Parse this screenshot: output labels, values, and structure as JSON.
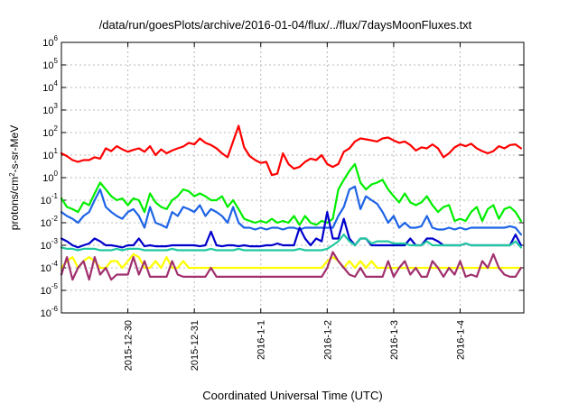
{
  "chart_data": {
    "type": "line",
    "title": "/data/run/goesPlots/archive/2016-01-04/flux/../flux/7daysMoonFluxes.txt",
    "xlabel": "Coordinated Universal Time (UTC)",
    "ylabel": "protons/cm2-s-sr-MeV",
    "yscale": "log",
    "ylim": [
      1e-06,
      1000000.0
    ],
    "y_ticks": [
      {
        "base": "10",
        "exp": "-6"
      },
      {
        "base": "10",
        "exp": "-5"
      },
      {
        "base": "10",
        "exp": "-4"
      },
      {
        "base": "10",
        "exp": "-3"
      },
      {
        "base": "10",
        "exp": "-2"
      },
      {
        "base": "10",
        "exp": "-1"
      },
      {
        "base": "10",
        "exp": "0"
      },
      {
        "base": "10",
        "exp": "1"
      },
      {
        "base": "10",
        "exp": "2"
      },
      {
        "base": "10",
        "exp": "3"
      },
      {
        "base": "10",
        "exp": "4"
      },
      {
        "base": "10",
        "exp": "5"
      },
      {
        "base": "10",
        "exp": "6"
      }
    ],
    "xlim": [
      "2015-12-29T00:00",
      "2016-01-04T23:00"
    ],
    "x_ticks": [
      "2015-12-30",
      "2015-12-31",
      "2016-1-1",
      "2016-1-2",
      "2016-1-3",
      "2016-1-4"
    ],
    "grid": true,
    "legend": "none",
    "x_times": [
      "2015-12-29T00:00",
      "2015-12-29T02:00",
      "2015-12-29T04:00",
      "2015-12-29T06:00",
      "2015-12-29T08:00",
      "2015-12-29T10:00",
      "2015-12-29T12:00",
      "2015-12-29T14:00",
      "2015-12-29T16:00",
      "2015-12-29T18:00",
      "2015-12-29T20:00",
      "2015-12-29T22:00",
      "2015-12-30T00:00",
      "2015-12-30T02:00",
      "2015-12-30T04:00",
      "2015-12-30T06:00",
      "2015-12-30T08:00",
      "2015-12-30T10:00",
      "2015-12-30T12:00",
      "2015-12-30T14:00",
      "2015-12-30T16:00",
      "2015-12-30T18:00",
      "2015-12-30T20:00",
      "2015-12-30T22:00",
      "2015-12-31T00:00",
      "2015-12-31T02:00",
      "2015-12-31T04:00",
      "2015-12-31T06:00",
      "2015-12-31T08:00",
      "2015-12-31T10:00",
      "2015-12-31T12:00",
      "2015-12-31T14:00",
      "2015-12-31T16:00",
      "2015-12-31T18:00",
      "2015-12-31T20:00",
      "2015-12-31T22:00",
      "2016-01-01T00:00",
      "2016-01-01T02:00",
      "2016-01-01T04:00",
      "2016-01-01T06:00",
      "2016-01-01T08:00",
      "2016-01-01T10:00",
      "2016-01-01T12:00",
      "2016-01-01T14:00",
      "2016-01-01T16:00",
      "2016-01-01T18:00",
      "2016-01-01T20:00",
      "2016-01-01T22:00",
      "2016-01-02T00:00",
      "2016-01-02T02:00",
      "2016-01-02T04:00",
      "2016-01-02T06:00",
      "2016-01-02T08:00",
      "2016-01-02T10:00",
      "2016-01-02T12:00",
      "2016-01-02T14:00",
      "2016-01-02T16:00",
      "2016-01-02T18:00",
      "2016-01-02T20:00",
      "2016-01-02T22:00",
      "2016-01-03T00:00",
      "2016-01-03T02:00",
      "2016-01-03T04:00",
      "2016-01-03T06:00",
      "2016-01-03T08:00",
      "2016-01-03T10:00",
      "2016-01-03T12:00",
      "2016-01-03T14:00",
      "2016-01-03T16:00",
      "2016-01-03T18:00",
      "2016-01-03T20:00",
      "2016-01-03T22:00",
      "2016-01-04T00:00",
      "2016-01-04T02:00",
      "2016-01-04T04:00",
      "2016-01-04T06:00",
      "2016-01-04T08:00",
      "2016-01-04T10:00",
      "2016-01-04T12:00",
      "2016-01-04T14:00",
      "2016-01-04T16:00",
      "2016-01-04T18:00",
      "2016-01-04T20:00",
      "2016-01-04T22:00"
    ],
    "series": [
      {
        "color": "#ff0000",
        "values": [
          12,
          9,
          6,
          5,
          6,
          6,
          8,
          7,
          20,
          15,
          25,
          18,
          14,
          17,
          20,
          14,
          25,
          10,
          18,
          12,
          16,
          20,
          24,
          35,
          30,
          55,
          35,
          28,
          20,
          12,
          8,
          40,
          200,
          22,
          9,
          6,
          4.5,
          5,
          1.3,
          1.5,
          12,
          4,
          2.5,
          3,
          5,
          7,
          6,
          10,
          4,
          3,
          4,
          14,
          20,
          40,
          55,
          50,
          45,
          40,
          55,
          60,
          45,
          35,
          40,
          28,
          16,
          22,
          20,
          30,
          20,
          8,
          12,
          22,
          30,
          25,
          32,
          20,
          15,
          12,
          15,
          25,
          20,
          28,
          30,
          20
        ]
      },
      {
        "color": "#00ee00",
        "values": [
          0.12,
          0.05,
          0.04,
          0.03,
          0.08,
          0.06,
          0.2,
          0.6,
          0.3,
          0.15,
          0.1,
          0.12,
          0.06,
          0.12,
          0.1,
          0.03,
          0.2,
          0.08,
          0.05,
          0.04,
          0.1,
          0.15,
          0.3,
          0.25,
          0.15,
          0.2,
          0.15,
          0.1,
          0.1,
          0.15,
          0.05,
          0.1,
          0.04,
          0.015,
          0.012,
          0.01,
          0.012,
          0.01,
          0.015,
          0.01,
          0.012,
          0.01,
          0.02,
          0.008,
          0.02,
          0.01,
          0.008,
          0.012,
          0.01,
          0.015,
          0.3,
          0.8,
          2,
          4,
          0.6,
          0.3,
          0.5,
          0.6,
          0.8,
          0.3,
          0.15,
          0.08,
          0.2,
          0.08,
          0.06,
          0.08,
          0.15,
          0.06,
          0.03,
          0.05,
          0.06,
          0.012,
          0.015,
          0.012,
          0.03,
          0.05,
          0.012,
          0.04,
          0.06,
          0.015,
          0.04,
          0.05,
          0.03,
          0.012
        ]
      },
      {
        "color": "#1e64e6",
        "values": [
          0.03,
          0.02,
          0.015,
          0.01,
          0.02,
          0.03,
          0.1,
          0.3,
          0.05,
          0.03,
          0.02,
          0.015,
          0.03,
          0.04,
          0.02,
          0.006,
          0.05,
          0.01,
          0.008,
          0.006,
          0.03,
          0.02,
          0.05,
          0.04,
          0.03,
          0.06,
          0.02,
          0.04,
          0.03,
          0.02,
          0.01,
          0.05,
          0.01,
          0.006,
          0.006,
          0.005,
          0.006,
          0.005,
          0.006,
          0.006,
          0.005,
          0.006,
          0.006,
          0.005,
          0.006,
          0.006,
          0.006,
          0.006,
          0.006,
          0.006,
          0.02,
          0.05,
          0.3,
          0.4,
          0.04,
          0.15,
          0.1,
          0.07,
          0.03,
          0.01,
          0.02,
          0.006,
          0.01,
          0.006,
          0.006,
          0.007,
          0.02,
          0.006,
          0.005,
          0.005,
          0.006,
          0.005,
          0.006,
          0.005,
          0.006,
          0.006,
          0.006,
          0.006,
          0.006,
          0.006,
          0.006,
          0.007,
          0.006,
          0.003
        ]
      },
      {
        "color": "#0000cc",
        "values": [
          0.002,
          0.0015,
          0.001,
          0.0008,
          0.001,
          0.0012,
          0.002,
          0.0015,
          0.001,
          0.001,
          0.0009,
          0.0008,
          0.001,
          0.001,
          0.002,
          0.0009,
          0.001,
          0.0009,
          0.0009,
          0.0009,
          0.001,
          0.001,
          0.001,
          0.001,
          0.001,
          0.0009,
          0.001,
          0.004,
          0.001,
          0.0009,
          0.001,
          0.001,
          0.0009,
          0.001,
          0.0009,
          0.0009,
          0.0009,
          0.001,
          0.001,
          0.0012,
          0.001,
          0.001,
          0.001,
          0.006,
          0.002,
          0.001,
          0.002,
          0.0015,
          0.03,
          0.002,
          0.002,
          0.015,
          0.002,
          0.001,
          0.002,
          0.002,
          0.001,
          0.001,
          0.001,
          0.001,
          0.001,
          0.001,
          0.001,
          0.002,
          0.001,
          0.001,
          0.002,
          0.002,
          0.0015,
          0.001,
          0.001,
          0.001,
          0.001,
          0.0012,
          0.001,
          0.001,
          0.001,
          0.001,
          0.001,
          0.001,
          0.001,
          0.001,
          0.003,
          0.001
        ]
      },
      {
        "color": "#20c8a0",
        "values": [
          0.0008,
          0.0007,
          0.0007,
          0.0006,
          0.0007,
          0.0007,
          0.0007,
          0.0006,
          0.0006,
          0.0006,
          0.0007,
          0.0006,
          0.0007,
          0.0007,
          0.0007,
          0.0006,
          0.0006,
          0.0006,
          0.0006,
          0.0006,
          0.0007,
          0.0006,
          0.0006,
          0.0006,
          0.0006,
          0.0006,
          0.0006,
          0.0007,
          0.0006,
          0.0006,
          0.0006,
          0.0006,
          0.0007,
          0.0006,
          0.0006,
          0.0006,
          0.0006,
          0.0006,
          0.0006,
          0.0006,
          0.0006,
          0.0006,
          0.0006,
          0.0007,
          0.0006,
          0.0006,
          0.0006,
          0.0006,
          0.0007,
          0.001,
          0.0015,
          0.003,
          0.0015,
          0.001,
          0.002,
          0.002,
          0.0012,
          0.0015,
          0.0015,
          0.0015,
          0.0012,
          0.0012,
          0.0012,
          0.001,
          0.001,
          0.001,
          0.0015,
          0.001,
          0.001,
          0.001,
          0.001,
          0.001,
          0.001,
          0.0012,
          0.001,
          0.001,
          0.001,
          0.001,
          0.001,
          0.001,
          0.001,
          0.001,
          0.0015,
          0.0008
        ]
      },
      {
        "color": "#ffff00",
        "values": [
          0.0001,
          0.0002,
          0.0003,
          0.0001,
          0.0002,
          0.0003,
          0.0002,
          0.0001,
          0.0001,
          0.0002,
          0.0002,
          0.0001,
          0.0002,
          0.0004,
          0.0003,
          0.0001,
          0.0001,
          0.0002,
          0.0001,
          0.0003,
          0.0001,
          0.0001,
          0.0002,
          0.0001,
          0.0001,
          0.0001,
          0.0001,
          0.0001,
          0.0001,
          0.0001,
          0.0001,
          0.0001,
          0.0001,
          0.0001,
          0.0001,
          0.0001,
          0.0001,
          0.0001,
          0.0001,
          0.0001,
          0.0001,
          0.0001,
          0.0001,
          0.0001,
          0.0001,
          0.0001,
          0.0001,
          0.0001,
          0.0002,
          0.0003,
          0.0002,
          0.0001,
          0.0002,
          0.0001,
          0.0002,
          0.0001,
          0.0002,
          0.0001,
          0.0001,
          0.0001,
          0.0001,
          0.0001,
          0.0001,
          0.0001,
          0.0001,
          0.0001,
          0.0001,
          0.0001,
          0.0001,
          0.0001,
          0.0001,
          0.0001,
          0.0001,
          0.0001,
          0.0001,
          0.0001,
          0.0001,
          0.0001,
          0.0001,
          0.0001,
          0.0001,
          0.0001,
          0.0001,
          0.0001
        ]
      },
      {
        "color": "#a0306e",
        "values": [
          5e-05,
          0.0003,
          3e-05,
          0.0001,
          0.0002,
          3e-05,
          0.0003,
          5e-05,
          0.0001,
          3e-05,
          5e-05,
          5e-05,
          5e-05,
          0.0003,
          5e-05,
          0.0002,
          4e-05,
          4e-05,
          4e-05,
          4e-05,
          0.0002,
          5e-05,
          4e-05,
          4e-05,
          4e-05,
          4e-05,
          4e-05,
          0.0001,
          4e-05,
          4e-05,
          4e-05,
          4e-05,
          4e-05,
          4e-05,
          4e-05,
          4e-05,
          4e-05,
          4e-05,
          4e-05,
          4e-05,
          4e-05,
          4e-05,
          4e-05,
          4e-05,
          4e-05,
          4e-05,
          4e-05,
          4e-05,
          0.0001,
          0.0005,
          0.0002,
          0.0001,
          5e-05,
          4e-05,
          0.0001,
          4e-05,
          4e-05,
          4e-05,
          4e-05,
          0.0002,
          4e-05,
          0.0001,
          0.0002,
          5e-05,
          0.0001,
          4e-05,
          4e-05,
          0.0002,
          0.0001,
          4e-05,
          0.0001,
          5e-05,
          0.0002,
          4e-05,
          5e-05,
          4e-05,
          0.0002,
          0.0001,
          0.0004,
          0.0001,
          5e-05,
          4e-05,
          4e-05,
          0.0001
        ]
      }
    ]
  }
}
